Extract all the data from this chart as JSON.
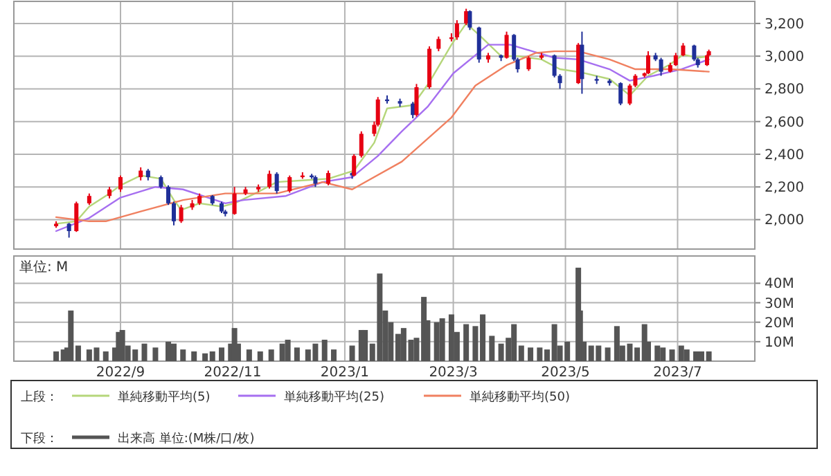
{
  "chart_data": [
    {
      "type": "candlestick",
      "legend_title": "上段：",
      "legend": "bottom",
      "grid": true,
      "tick_labels": "y",
      "xlim": [
        "2022-07-05",
        "2023-08-12"
      ],
      "xticks": [
        {
          "value": "2022-09-01",
          "label": null
        },
        {
          "value": "2022-11-01",
          "label": null
        },
        {
          "value": "2023-01-01",
          "label": null
        },
        {
          "value": "2023-03-01",
          "label": null
        },
        {
          "value": "2023-05-01",
          "label": null
        },
        {
          "value": "2023-07-01",
          "label": null
        }
      ],
      "ylim": [
        1820,
        3335
      ],
      "yticks": [
        {
          "value": 2000,
          "label": "2,000"
        },
        {
          "value": 2200,
          "label": "2,200"
        },
        {
          "value": 2400,
          "label": "2,400"
        },
        {
          "value": 2600,
          "label": "2,600"
        },
        {
          "value": 2800,
          "label": "2,800"
        },
        {
          "value": 3000,
          "label": "3,000"
        },
        {
          "value": 3200,
          "label": "3,200"
        }
      ],
      "x": [
        "2022-07-28",
        "2022-08-04",
        "2022-08-08",
        "2022-08-15",
        "2022-08-26",
        "2022-09-01",
        "2022-09-12",
        "2022-09-16",
        "2022-09-23",
        "2022-09-27",
        "2022-09-30",
        "2022-10-04",
        "2022-10-10",
        "2022-10-14",
        "2022-10-21",
        "2022-10-26",
        "2022-10-28",
        "2022-11-02",
        "2022-11-08",
        "2022-11-15",
        "2022-11-21",
        "2022-11-25",
        "2022-12-02",
        "2022-12-09",
        "2022-12-14",
        "2022-12-16",
        "2022-12-23",
        "2023-01-05",
        "2023-01-06",
        "2023-01-10",
        "2023-01-17",
        "2023-01-19",
        "2023-01-24",
        "2023-01-31",
        "2023-02-07",
        "2023-02-09",
        "2023-02-16",
        "2023-02-21",
        "2023-02-28",
        "2023-03-03",
        "2023-03-08",
        "2023-03-10",
        "2023-03-15",
        "2023-03-20",
        "2023-03-27",
        "2023-03-30",
        "2023-04-03",
        "2023-04-05",
        "2023-04-11",
        "2023-04-18",
        "2023-04-25",
        "2023-04-28",
        "2023-05-08",
        "2023-05-10",
        "2023-05-18",
        "2023-05-25",
        "2023-05-31",
        "2023-06-05",
        "2023-06-08",
        "2023-06-13",
        "2023-06-15",
        "2023-06-19",
        "2023-06-22",
        "2023-06-27",
        "2023-06-30",
        "2023-07-04",
        "2023-07-10",
        "2023-07-12",
        "2023-07-17",
        "2023-07-18"
      ],
      "ohlc": [
        [
          1960,
          1990,
          1950,
          1975
        ],
        [
          1975,
          1980,
          1890,
          1930
        ],
        [
          1930,
          2110,
          1925,
          2100
        ],
        [
          2100,
          2160,
          2090,
          2145
        ],
        [
          2145,
          2200,
          2130,
          2185
        ],
        [
          2185,
          2270,
          2170,
          2260
        ],
        [
          2260,
          2320,
          2240,
          2300
        ],
        [
          2300,
          2310,
          2240,
          2260
        ],
        [
          2260,
          2270,
          2190,
          2200
        ],
        [
          2200,
          2210,
          2090,
          2100
        ],
        [
          2100,
          2110,
          1965,
          1990
        ],
        [
          1990,
          2090,
          1980,
          2075
        ],
        [
          2075,
          2120,
          2060,
          2100
        ],
        [
          2100,
          2160,
          2090,
          2145
        ],
        [
          2145,
          2150,
          2090,
          2100
        ],
        [
          2100,
          2110,
          2040,
          2050
        ],
        [
          2050,
          2060,
          2020,
          2035
        ],
        [
          2035,
          2200,
          2030,
          2160
        ],
        [
          2160,
          2200,
          2150,
          2185
        ],
        [
          2185,
          2215,
          2170,
          2200
        ],
        [
          2200,
          2300,
          2190,
          2280
        ],
        [
          2280,
          2290,
          2160,
          2175
        ],
        [
          2175,
          2270,
          2165,
          2260
        ],
        [
          2260,
          2290,
          2250,
          2270
        ],
        [
          2270,
          2280,
          2250,
          2260
        ],
        [
          2260,
          2270,
          2200,
          2220
        ],
        [
          2220,
          2300,
          2210,
          2285
        ],
        [
          2285,
          2290,
          2250,
          2270
        ],
        [
          2270,
          2400,
          2265,
          2390
        ],
        [
          2390,
          2540,
          2380,
          2525
        ],
        [
          2525,
          2600,
          2510,
          2580
        ],
        [
          2580,
          2750,
          2570,
          2735
        ],
        [
          2735,
          2760,
          2710,
          2725
        ],
        [
          2725,
          2740,
          2690,
          2710
        ],
        [
          2710,
          2720,
          2620,
          2640
        ],
        [
          2640,
          2830,
          2630,
          2810
        ],
        [
          2810,
          3060,
          2800,
          3045
        ],
        [
          3045,
          3120,
          3030,
          3105
        ],
        [
          3105,
          3140,
          3090,
          3115
        ],
        [
          3115,
          3220,
          3100,
          3200
        ],
        [
          3200,
          3290,
          3190,
          3275
        ],
        [
          3275,
          3280,
          3160,
          3175
        ],
        [
          3175,
          3180,
          2960,
          2980
        ],
        [
          2980,
          3020,
          2960,
          3005
        ],
        [
          3005,
          3010,
          2970,
          2990
        ],
        [
          2990,
          3150,
          2985,
          3130
        ],
        [
          3130,
          3135,
          2970,
          2980
        ],
        [
          2980,
          2990,
          2900,
          2920
        ],
        [
          2920,
          3000,
          2910,
          2990
        ],
        [
          2990,
          3020,
          2980,
          3005
        ],
        [
          3005,
          3010,
          2870,
          2880
        ],
        [
          2880,
          2890,
          2800,
          2835
        ],
        [
          2835,
          3080,
          2830,
          3070
        ],
        [
          3070,
          3150,
          2770,
          2860
        ],
        [
          2860,
          2880,
          2830,
          2850
        ],
        [
          2850,
          2860,
          2820,
          2835
        ],
        [
          2835,
          2840,
          2700,
          2710
        ],
        [
          2710,
          2830,
          2700,
          2820
        ],
        [
          2820,
          2890,
          2810,
          2880
        ],
        [
          2880,
          2900,
          2870,
          2895
        ],
        [
          2895,
          3030,
          2890,
          3005
        ],
        [
          3005,
          3020,
          2970,
          2980
        ],
        [
          2980,
          2990,
          2880,
          2905
        ],
        [
          2905,
          2960,
          2900,
          2945
        ],
        [
          2945,
          3020,
          2940,
          3005
        ],
        [
          3005,
          3080,
          3000,
          3065
        ],
        [
          3065,
          3070,
          2970,
          2980
        ],
        [
          2980,
          2990,
          2930,
          2945
        ],
        [
          2945,
          3010,
          2940,
          3005
        ],
        [
          3005,
          3040,
          3000,
          3030
        ]
      ],
      "colors": [
        "#e60012",
        "#1f2f98",
        "#e60012",
        "#e60012",
        "#e60012",
        "#e60012",
        "#e60012",
        "#1f2f98",
        "#1f2f98",
        "#1f2f98",
        "#1f2f98",
        "#e60012",
        "#e60012",
        "#e60012",
        "#1f2f98",
        "#1f2f98",
        "#1f2f98",
        "#e60012",
        "#e60012",
        "#e60012",
        "#e60012",
        "#1f2f98",
        "#e60012",
        "#e60012",
        "#1f2f98",
        "#1f2f98",
        "#e60012",
        "#1f2f98",
        "#e60012",
        "#e60012",
        "#e60012",
        "#e60012",
        "#1f2f98",
        "#1f2f98",
        "#1f2f98",
        "#e60012",
        "#e60012",
        "#e60012",
        "#e60012",
        "#e60012",
        "#e60012",
        "#1f2f98",
        "#1f2f98",
        "#e60012",
        "#1f2f98",
        "#e60012",
        "#1f2f98",
        "#1f2f98",
        "#e60012",
        "#e60012",
        "#1f2f98",
        "#1f2f98",
        "#e60012",
        "#1f2f98",
        "#1f2f98",
        "#1f2f98",
        "#1f2f98",
        "#e60012",
        "#e60012",
        "#e60012",
        "#e60012",
        "#1f2f98",
        "#1f2f98",
        "#e60012",
        "#e60012",
        "#e60012",
        "#1f2f98",
        "#1f2f98",
        "#e60012",
        "#e60012"
      ],
      "series": [
        {
          "name": "単純移動平均(5)",
          "type": "line",
          "color": "#b5d67a",
          "x": [
            "2022-07-28",
            "2022-08-08",
            "2022-08-15",
            "2022-08-26",
            "2022-09-01",
            "2022-09-12",
            "2022-09-23",
            "2022-09-30",
            "2022-10-04",
            "2022-10-14",
            "2022-10-26",
            "2022-11-02",
            "2022-11-15",
            "2022-11-25",
            "2022-12-09",
            "2022-12-23",
            "2023-01-06",
            "2023-01-17",
            "2023-01-24",
            "2023-02-07",
            "2023-02-16",
            "2023-02-28",
            "2023-03-08",
            "2023-03-15",
            "2023-03-27",
            "2023-04-05",
            "2023-04-18",
            "2023-04-28",
            "2023-05-10",
            "2023-05-25",
            "2023-06-05",
            "2023-06-15",
            "2023-06-27",
            "2023-07-04",
            "2023-07-12",
            "2023-07-18"
          ],
          "values": [
            1975,
            1990,
            2080,
            2160,
            2210,
            2270,
            2250,
            2120,
            2060,
            2100,
            2080,
            2100,
            2170,
            2230,
            2240,
            2250,
            2300,
            2470,
            2680,
            2700,
            2840,
            3070,
            3200,
            3130,
            3000,
            3000,
            2980,
            2920,
            2900,
            2860,
            2760,
            2880,
            2950,
            3010,
            2990,
            3000
          ]
        },
        {
          "name": "単純移動平均(25)",
          "type": "line",
          "color": "#a66ff0",
          "x": [
            "2022-07-28",
            "2022-08-15",
            "2022-09-01",
            "2022-09-20",
            "2022-10-05",
            "2022-10-28",
            "2022-11-07",
            "2022-11-30",
            "2022-12-20",
            "2023-01-05",
            "2023-01-19",
            "2023-02-01",
            "2023-02-15",
            "2023-03-01",
            "2023-03-20",
            "2023-04-01",
            "2023-04-13",
            "2023-04-25",
            "2023-05-08",
            "2023-05-25",
            "2023-06-05",
            "2023-06-18",
            "2023-07-03",
            "2023-07-18"
          ],
          "values": [
            1930,
            2010,
            2135,
            2200,
            2185,
            2100,
            2120,
            2145,
            2230,
            2260,
            2390,
            2540,
            2690,
            2895,
            3070,
            3070,
            3030,
            2990,
            2980,
            2920,
            2850,
            2880,
            2920,
            2980
          ]
        },
        {
          "name": "単純移動平均(50)",
          "type": "line",
          "color": "#f08060",
          "x": [
            "2022-07-28",
            "2022-08-15",
            "2022-08-24",
            "2022-09-12",
            "2022-10-05",
            "2022-10-28",
            "2022-11-25",
            "2022-12-20",
            "2023-01-05",
            "2023-02-01",
            "2023-02-28",
            "2023-03-13",
            "2023-03-30",
            "2023-04-15",
            "2023-04-25",
            "2023-05-08",
            "2023-05-25",
            "2023-06-08",
            "2023-06-27",
            "2023-07-18"
          ],
          "values": [
            2015,
            1990,
            1990,
            2050,
            2120,
            2160,
            2160,
            2230,
            2185,
            2355,
            2625,
            2820,
            2945,
            3020,
            3030,
            3030,
            2980,
            2920,
            2920,
            2905
          ]
        }
      ]
    },
    {
      "type": "bar",
      "legend_title": "下段：",
      "legend": "bottom",
      "grid": true,
      "annotations": [
        "単位: M"
      ],
      "xlim": [
        "2022-07-05",
        "2023-08-12"
      ],
      "xticks": [
        {
          "value": "2022-09-01",
          "label": "2022/9"
        },
        {
          "value": "2022-11-01",
          "label": "2022/11"
        },
        {
          "value": "2023-01-01",
          "label": "2023/1"
        },
        {
          "value": "2023-03-01",
          "label": "2023/3"
        },
        {
          "value": "2023-05-01",
          "label": "2023/5"
        },
        {
          "value": "2023-07-01",
          "label": "2023/7"
        }
      ],
      "ylim": [
        0,
        54
      ],
      "yticks": [
        {
          "value": 10,
          "label": "10M"
        },
        {
          "value": 20,
          "label": "20M"
        },
        {
          "value": 30,
          "label": "30M"
        },
        {
          "value": 40,
          "label": "40M"
        }
      ],
      "x": [
        "2022-07-28",
        "2022-08-01",
        "2022-08-03",
        "2022-08-05",
        "2022-08-09",
        "2022-08-15",
        "2022-08-19",
        "2022-08-24",
        "2022-08-29",
        "2022-08-31",
        "2022-09-02",
        "2022-09-05",
        "2022-09-09",
        "2022-09-14",
        "2022-09-20",
        "2022-09-27",
        "2022-09-30",
        "2022-10-05",
        "2022-10-11",
        "2022-10-17",
        "2022-10-21",
        "2022-10-26",
        "2022-10-31",
        "2022-11-02",
        "2022-11-04",
        "2022-11-10",
        "2022-11-16",
        "2022-11-22",
        "2022-11-28",
        "2022-12-01",
        "2022-12-06",
        "2022-12-12",
        "2022-12-16",
        "2022-12-21",
        "2022-12-26",
        "2023-01-05",
        "2023-01-10",
        "2023-01-12",
        "2023-01-16",
        "2023-01-20",
        "2023-01-23",
        "2023-01-26",
        "2023-01-30",
        "2023-02-02",
        "2023-02-06",
        "2023-02-09",
        "2023-02-13",
        "2023-02-15",
        "2023-02-20",
        "2023-02-23",
        "2023-02-28",
        "2023-03-03",
        "2023-03-08",
        "2023-03-13",
        "2023-03-17",
        "2023-03-22",
        "2023-03-27",
        "2023-03-31",
        "2023-04-03",
        "2023-04-07",
        "2023-04-12",
        "2023-04-17",
        "2023-04-21",
        "2023-04-25",
        "2023-04-28",
        "2023-05-02",
        "2023-05-08",
        "2023-05-09",
        "2023-05-11",
        "2023-05-15",
        "2023-05-19",
        "2023-05-24",
        "2023-05-29",
        "2023-06-01",
        "2023-06-05",
        "2023-06-09",
        "2023-06-13",
        "2023-06-15",
        "2023-06-20",
        "2023-06-23",
        "2023-06-28",
        "2023-07-03",
        "2023-07-06",
        "2023-07-11",
        "2023-07-14",
        "2023-07-18"
      ],
      "series": [
        {
          "name": "出来高 単位:(M株/口/枚)",
          "color": "#555555",
          "values": [
            5,
            6,
            7,
            26,
            8,
            6,
            7,
            5,
            7,
            15,
            16,
            8,
            6,
            9,
            7,
            10,
            9,
            6,
            5,
            4,
            5,
            7,
            9,
            17,
            9,
            6,
            5,
            6,
            9,
            11,
            7,
            6,
            9,
            11,
            6,
            8,
            16,
            16,
            9,
            45,
            26,
            20,
            14,
            17,
            11,
            12,
            33,
            21,
            20,
            22,
            24,
            15,
            19,
            18,
            24,
            13,
            9,
            12,
            19,
            8,
            7,
            7,
            6,
            19,
            8,
            10,
            48,
            26,
            10,
            8,
            8,
            7,
            18,
            8,
            9,
            7,
            19,
            10,
            8,
            7,
            6,
            8,
            6,
            5,
            5,
            5
          ]
        }
      ]
    }
  ]
}
